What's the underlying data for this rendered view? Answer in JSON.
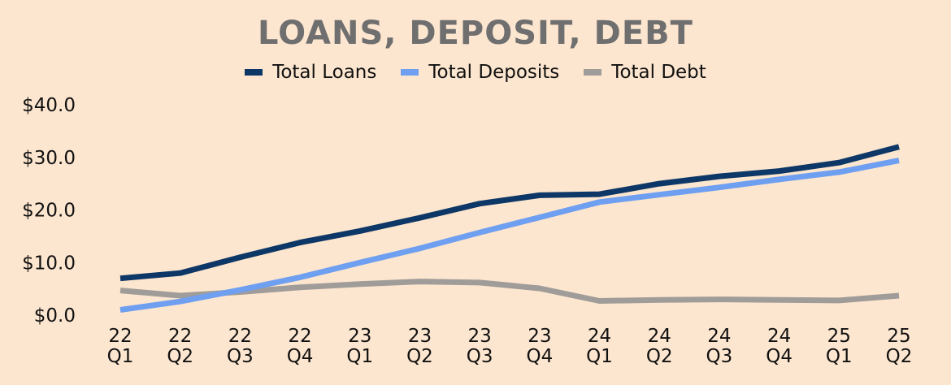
{
  "chart_data": {
    "type": "line",
    "title": "LOANS, DEPOSIT, DEBT",
    "categories": [
      [
        "22",
        "Q1"
      ],
      [
        "22",
        "Q2"
      ],
      [
        "22",
        "Q3"
      ],
      [
        "22",
        "Q4"
      ],
      [
        "23",
        "Q1"
      ],
      [
        "23",
        "Q2"
      ],
      [
        "23",
        "Q3"
      ],
      [
        "23",
        "Q4"
      ],
      [
        "24",
        "Q1"
      ],
      [
        "24",
        "Q2"
      ],
      [
        "24",
        "Q3"
      ],
      [
        "24",
        "Q4"
      ],
      [
        "25",
        "Q1"
      ],
      [
        "25",
        "Q2"
      ]
    ],
    "yticks": [
      "$0.0",
      "$10.0",
      "$20.0",
      "$30.0",
      "$40.0"
    ],
    "ylim": [
      0,
      40
    ],
    "grid": false,
    "legend_position": "top-center",
    "series": [
      {
        "name": "Total Loans",
        "color": "#0d3766",
        "values": [
          7.0,
          8.0,
          11.0,
          13.8,
          16.0,
          18.5,
          21.2,
          22.8,
          23.0,
          25.0,
          26.4,
          27.4,
          29.0,
          32.0
        ]
      },
      {
        "name": "Total Deposits",
        "color": "#6f9ff0",
        "values": [
          1.0,
          2.6,
          4.8,
          7.2,
          10.0,
          12.7,
          15.7,
          18.6,
          21.5,
          22.9,
          24.3,
          25.8,
          27.2,
          29.4
        ]
      },
      {
        "name": "Total Debt",
        "color": "#a09c99",
        "values": [
          4.7,
          3.7,
          4.4,
          5.3,
          5.9,
          6.4,
          6.2,
          5.1,
          2.7,
          2.9,
          3.0,
          2.9,
          2.8,
          3.7
        ]
      }
    ]
  }
}
